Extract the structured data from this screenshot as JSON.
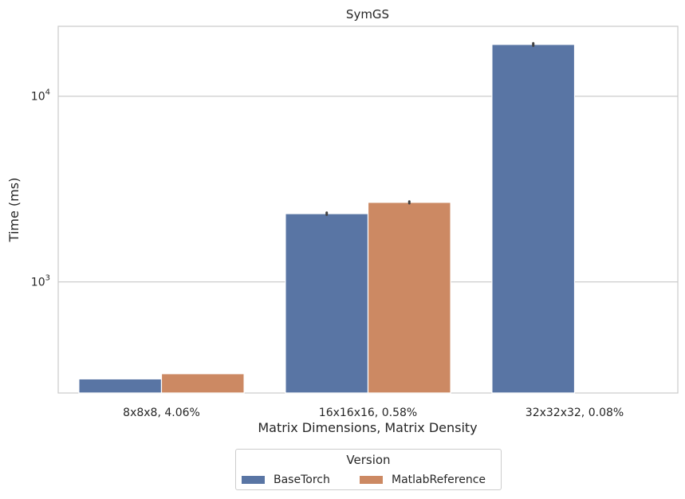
{
  "chart_data": {
    "type": "bar",
    "title": "SymGS",
    "xlabel": "Matrix Dimensions, Matrix Density",
    "ylabel": "Time (ms)",
    "yscale": "log",
    "ylim": [
      252,
      23800
    ],
    "yticks": [
      {
        "value": 1000,
        "base": "10",
        "exp": "3"
      },
      {
        "value": 10000,
        "base": "10",
        "exp": "4"
      }
    ],
    "grid": true,
    "categories": [
      "8x8x8, 4.06%",
      "16x16x16, 0.58%",
      "32x32x32, 0.08%"
    ],
    "series": [
      {
        "name": "BaseTorch",
        "color": "#5975a4",
        "values": [
          300,
          2330,
          19000
        ],
        "errors": [
          0,
          30,
          300
        ]
      },
      {
        "name": "MatlabReference",
        "color": "#cc8963",
        "values": [
          320,
          2680,
          null
        ],
        "errors": [
          0,
          30,
          null
        ]
      }
    ],
    "legend": {
      "title": "Version",
      "placement": "bottom-center"
    }
  }
}
